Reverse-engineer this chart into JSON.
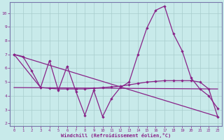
{
  "background_color": "#c8eaea",
  "grid_color": "#a8cccc",
  "line_color": "#882288",
  "border_color": "#7777aa",
  "xlim": [
    -0.5,
    23.5
  ],
  "ylim": [
    1.8,
    10.8
  ],
  "yticks": [
    2,
    3,
    4,
    5,
    6,
    7,
    8,
    9,
    10
  ],
  "xticks": [
    0,
    1,
    2,
    3,
    4,
    5,
    6,
    7,
    8,
    9,
    10,
    11,
    12,
    13,
    14,
    15,
    16,
    17,
    18,
    19,
    20,
    21,
    22,
    23
  ],
  "xlabel": "Windchill (Refroidissement éolien,°C)",
  "series1": [
    [
      0,
      7.0
    ],
    [
      1,
      6.85
    ],
    [
      2,
      5.8
    ],
    [
      3,
      4.6
    ],
    [
      4,
      6.55
    ],
    [
      5,
      4.4
    ],
    [
      6,
      6.15
    ],
    [
      7,
      4.3
    ],
    [
      8,
      2.6
    ],
    [
      9,
      4.4
    ],
    [
      10,
      2.5
    ],
    [
      11,
      3.8
    ],
    [
      12,
      4.6
    ],
    [
      13,
      5.0
    ],
    [
      14,
      7.0
    ],
    [
      15,
      8.9
    ],
    [
      16,
      10.2
    ],
    [
      17,
      10.5
    ],
    [
      18,
      8.5
    ],
    [
      19,
      7.25
    ],
    [
      20,
      5.3
    ],
    [
      21,
      4.5
    ],
    [
      22,
      4.0
    ],
    [
      23,
      3.1
    ]
  ],
  "series2": [
    [
      0,
      7.0
    ],
    [
      3,
      4.6
    ],
    [
      4,
      4.55
    ],
    [
      5,
      4.5
    ],
    [
      6,
      4.5
    ],
    [
      7,
      4.5
    ],
    [
      8,
      4.5
    ],
    [
      9,
      4.55
    ],
    [
      10,
      4.6
    ],
    [
      11,
      4.65
    ],
    [
      12,
      4.7
    ],
    [
      13,
      4.8
    ],
    [
      14,
      4.9
    ],
    [
      15,
      5.0
    ],
    [
      16,
      5.05
    ],
    [
      17,
      5.1
    ],
    [
      18,
      5.1
    ],
    [
      19,
      5.1
    ],
    [
      20,
      5.1
    ],
    [
      21,
      5.0
    ],
    [
      22,
      4.5
    ],
    [
      23,
      2.5
    ]
  ],
  "series3_x": [
    0,
    23
  ],
  "series3_y": [
    7.0,
    2.5
  ],
  "series4_x": [
    0,
    23
  ],
  "series4_y": [
    4.6,
    4.5
  ]
}
